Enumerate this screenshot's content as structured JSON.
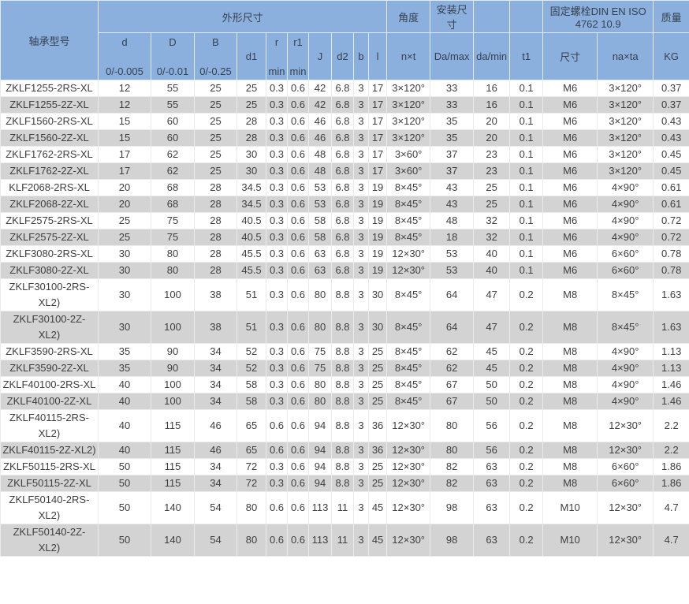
{
  "table": {
    "group_headers": {
      "model": "轴承型号",
      "dimensions": "外形尺寸",
      "angle": "角度",
      "mounting": "安装尺寸",
      "bolt": "固定螺栓DIN EN ISO 4762  10.9",
      "mass": "质量"
    },
    "columns": [
      {
        "key": "d",
        "label": "d",
        "sub": "0/-0.005"
      },
      {
        "key": "cap-d",
        "label": "D",
        "sub": "0/-0.01"
      },
      {
        "key": "b-dim",
        "label": "B",
        "sub": "0/-0.25"
      },
      {
        "key": "d1",
        "label": "d1"
      },
      {
        "key": "r",
        "label": "r",
        "sub": "min"
      },
      {
        "key": "r1",
        "label": "r1",
        "sub": "min"
      },
      {
        "key": "j",
        "label": "J"
      },
      {
        "key": "d2",
        "label": "d2"
      },
      {
        "key": "b",
        "label": "b"
      },
      {
        "key": "l",
        "label": "l"
      },
      {
        "key": "nxt",
        "label": "n×t"
      },
      {
        "key": "da-max",
        "label": "Da/max"
      },
      {
        "key": "da-min",
        "label": "da/min"
      },
      {
        "key": "t1",
        "label": "t1"
      },
      {
        "key": "size",
        "label": "尺寸"
      },
      {
        "key": "naxta",
        "label": "na×ta"
      },
      {
        "key": "kg",
        "label": "KG"
      }
    ],
    "rows": [
      [
        "ZKLF1255-2RS-XL",
        "12",
        "55",
        "25",
        "25",
        "0.3",
        "0.6",
        "42",
        "6.8",
        "3",
        "17",
        "3×120°",
        "33",
        "16",
        "0.1",
        "M6",
        "3×120°",
        "0.37"
      ],
      [
        "ZKLF1255-2Z-XL",
        "12",
        "55",
        "25",
        "25",
        "0.3",
        "0.6",
        "42",
        "6.8",
        "3",
        "17",
        "3×120°",
        "33",
        "16",
        "0.1",
        "M6",
        "3×120°",
        "0.37"
      ],
      [
        "ZKLF1560-2RS-XL",
        "15",
        "60",
        "25",
        "28",
        "0.3",
        "0.6",
        "46",
        "6.8",
        "3",
        "17",
        "3×120°",
        "35",
        "20",
        "0.1",
        "M6",
        "3×120°",
        "0.43"
      ],
      [
        "ZKLF1560-2Z-XL",
        "15",
        "60",
        "25",
        "28",
        "0.3",
        "0.6",
        "46",
        "6.8",
        "3",
        "17",
        "3×120°",
        "35",
        "20",
        "0.1",
        "M6",
        "3×120°",
        "0.43"
      ],
      [
        "ZKLF1762-2RS-XL",
        "17",
        "62",
        "25",
        "30",
        "0.3",
        "0.6",
        "48",
        "6.8",
        "3",
        "17",
        "3×60°",
        "37",
        "23",
        "0.1",
        "M6",
        "3×120°",
        "0.45"
      ],
      [
        "ZKLF1762-2Z-XL",
        "17",
        "62",
        "25",
        "30",
        "0.3",
        "0.6",
        "48",
        "6.8",
        "3",
        "17",
        "3×60°",
        "37",
        "23",
        "0.1",
        "M6",
        "3×120°",
        "0.45"
      ],
      [
        "KLF2068-2RS-XL",
        "20",
        "68",
        "28",
        "34.5",
        "0.3",
        "0.6",
        "53",
        "6.8",
        "3",
        "19",
        "8×45°",
        "43",
        "25",
        "0.1",
        "M6",
        "4×90°",
        "0.61"
      ],
      [
        "ZKLF2068-2Z-XL",
        "20",
        "68",
        "28",
        "34.5",
        "0.3",
        "0.6",
        "53",
        "6.8",
        "3",
        "19",
        "8×45°",
        "43",
        "25",
        "0.1",
        "M6",
        "4×90°",
        "0.61"
      ],
      [
        "ZKLF2575-2RS-XL",
        "25",
        "75",
        "28",
        "40.5",
        "0.3",
        "0.6",
        "58",
        "6.8",
        "3",
        "19",
        "8×45°",
        "48",
        "32",
        "0.1",
        "M6",
        "4×90°",
        "0.72"
      ],
      [
        "ZKLF2575-2Z-XL",
        "25",
        "75",
        "28",
        "40.5",
        "0.3",
        "0.6",
        "58",
        "6.8",
        "3",
        "19",
        "8×45°",
        "18",
        "32",
        "0.1",
        "M6",
        "4×90°",
        "0.72"
      ],
      [
        "ZKLF3080-2RS-XL",
        "30",
        "80",
        "28",
        "45.5",
        "0.3",
        "0.6",
        "63",
        "6.8",
        "3",
        "19",
        "12×30°",
        "53",
        "40",
        "0.1",
        "M6",
        "6×60°",
        "0.78"
      ],
      [
        "ZKLF3080-2Z-XL",
        "30",
        "80",
        "28",
        "45.5",
        "0.3",
        "0.6",
        "63",
        "6.8",
        "3",
        "19",
        "12×30°",
        "53",
        "40",
        "0.1",
        "M6",
        "6×60°",
        "0.78"
      ],
      [
        "ZKLF30100-2RS-XL2)",
        "30",
        "100",
        "38",
        "51",
        "0.3",
        "0.6",
        "80",
        "8.8",
        "3",
        "30",
        "8×45°",
        "64",
        "47",
        "0.2",
        "M8",
        "8×45°",
        "1.63"
      ],
      [
        "ZKLF30100-2Z-XL2)",
        "30",
        "100",
        "38",
        "51",
        "0.3",
        "0.6",
        "80",
        "8.8",
        "3",
        "30",
        "8×45°",
        "64",
        "47",
        "0.2",
        "M8",
        "8×45°",
        "1.63"
      ],
      [
        "ZKLF3590-2RS-XL",
        "35",
        "90",
        "34",
        "52",
        "0.3",
        "0.6",
        "75",
        "8.8",
        "3",
        "25",
        "8×45°",
        "62",
        "45",
        "0.2",
        "M8",
        "4×90°",
        "1.13"
      ],
      [
        "ZKLF3590-2Z-XL",
        "35",
        "90",
        "34",
        "52",
        "0.3",
        "0.6",
        "75",
        "8.8",
        "3",
        "25",
        "8×45°",
        "62",
        "45",
        "0.2",
        "M8",
        "4×90°",
        "1.13"
      ],
      [
        "ZKLF40100-2RS-XL",
        "40",
        "100",
        "34",
        "58",
        "0.3",
        "0.6",
        "80",
        "8.8",
        "3",
        "25",
        "8×45°",
        "67",
        "50",
        "0.2",
        "M8",
        "4×90°",
        "1.46"
      ],
      [
        "ZKLF40100-2Z-XL",
        "40",
        "100",
        "34",
        "58",
        "0.3",
        "0.6",
        "80",
        "8.8",
        "3",
        "25",
        "8×45°",
        "67",
        "50",
        "0.2",
        "M8",
        "4×90°",
        "1.46"
      ],
      [
        "ZKLF40115-2RS-XL2)",
        "40",
        "115",
        "46",
        "65",
        "0.6",
        "0.6",
        "94",
        "8.8",
        "3",
        "36",
        "12×30°",
        "80",
        "56",
        "0.2",
        "M8",
        "12×30°",
        "2.2"
      ],
      [
        "ZKLF40115-2Z-XL2)",
        "40",
        "115",
        "46",
        "65",
        "0.6",
        "0.6",
        "94",
        "8.8",
        "3",
        "36",
        "12×30°",
        "80",
        "56",
        "0.2",
        "M8",
        "12×30°",
        "2.2"
      ],
      [
        "ZKLF50115-2RS-XL",
        "50",
        "115",
        "34",
        "72",
        "0.3",
        "0.6",
        "94",
        "8.8",
        "3",
        "25",
        "12×30°",
        "82",
        "63",
        "0.2",
        "M8",
        "6×60°",
        "1.86"
      ],
      [
        "ZKLF50115-2Z-XL",
        "50",
        "115",
        "34",
        "72",
        "0.3",
        "0.6",
        "94",
        "8.8",
        "3",
        "25",
        "12×30°",
        "82",
        "63",
        "0.2",
        "M8",
        "6×60°",
        "1.86"
      ],
      [
        "ZKLF50140-2RS-XL2)",
        "50",
        "140",
        "54",
        "80",
        "0.6",
        "0.6",
        "113",
        "11",
        "3",
        "45",
        "12×30°",
        "98",
        "63",
        "0.2",
        "M10",
        "12×30°",
        "4.7"
      ],
      [
        "ZKLF50140-2Z-XL2)",
        "50",
        "140",
        "54",
        "80",
        "0.6",
        "0.6",
        "113",
        "11",
        "3",
        "45",
        "12×30°",
        "98",
        "63",
        "0.2",
        "M10",
        "12×30°",
        "4.7"
      ]
    ]
  }
}
